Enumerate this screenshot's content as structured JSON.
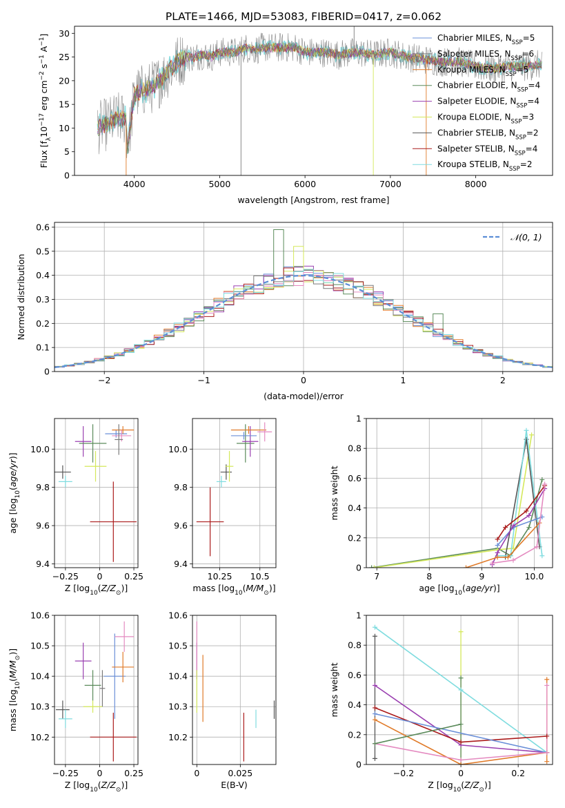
{
  "figure_title": "PLATE=1466, MJD=53083, FIBERID=0417, z=0.062",
  "colors": {
    "cMILES": "#6a8fd8",
    "sMILES": "#7a7a7a",
    "kMILES": "#e07a28",
    "cELODIE": "#5a8a5a",
    "sELODIE": "#9a3fb0",
    "kELODIE": "#d4e85a",
    "cSTELIB": "#555555",
    "sSTELIB": "#aa1a1a",
    "kSTELIB": "#7fdcdf",
    "pink": "#e48ac0",
    "norm": "#5b8dd6"
  },
  "spectrum_legend": [
    {
      "pre": "Chabrier MILES, N",
      "n": "5",
      "color": "#6a8fd8"
    },
    {
      "pre": "Salpeter MILES, N",
      "n": "6",
      "color": "#7a7a7a"
    },
    {
      "pre": "Kroupa MILES, N",
      "n": "5",
      "color": "#e07a28"
    },
    {
      "pre": "Chabrier ELODIE, N",
      "n": "4",
      "color": "#5a8a5a"
    },
    {
      "pre": "Salpeter ELODIE, N",
      "n": "4",
      "color": "#9a3fb0"
    },
    {
      "pre": "Kroupa ELODIE, N",
      "n": "3",
      "color": "#d4e85a"
    },
    {
      "pre": "Chabrier STELIB, N",
      "n": "2",
      "color": "#555555"
    },
    {
      "pre": "Salpeter STELIB, N",
      "n": "4",
      "color": "#aa1a1a"
    },
    {
      "pre": "Kroupa STELIB, N",
      "n": "2",
      "color": "#7fdcdf"
    }
  ],
  "legend_sub": "SSP",
  "chart_data": [
    {
      "id": "spectrum",
      "type": "line",
      "xlabel": "wavelength [Angstrom, rest frame]",
      "ylabel": "Flux [f_λ10^-17 erg cm^-2 s^-1 A^-1]",
      "xlim": [
        3300,
        8900
      ],
      "ylim": [
        0,
        31.5
      ],
      "xticks": [
        4000,
        5000,
        6000,
        7000,
        8000
      ],
      "yticks": [
        0,
        5,
        10,
        15,
        20,
        25,
        30
      ],
      "continuum": [
        [
          3570,
          10
        ],
        [
          3700,
          11
        ],
        [
          3800,
          12
        ],
        [
          3900,
          12
        ],
        [
          3920,
          6
        ],
        [
          3960,
          11
        ],
        [
          4000,
          17
        ],
        [
          4100,
          18
        ],
        [
          4200,
          18.5
        ],
        [
          4300,
          20
        ],
        [
          4400,
          22
        ],
        [
          4500,
          24
        ],
        [
          4600,
          25
        ],
        [
          4700,
          25
        ],
        [
          4800,
          25.5
        ],
        [
          4900,
          25
        ],
        [
          5000,
          26
        ],
        [
          5100,
          26
        ],
        [
          5200,
          26
        ],
        [
          5300,
          27
        ],
        [
          5400,
          26.5
        ],
        [
          5500,
          27
        ],
        [
          5600,
          27
        ],
        [
          5700,
          27
        ],
        [
          5800,
          27
        ],
        [
          5900,
          27
        ],
        [
          6000,
          26
        ],
        [
          6200,
          26
        ],
        [
          6400,
          25.5
        ],
        [
          6600,
          26
        ],
        [
          6800,
          25.5
        ],
        [
          7000,
          26
        ],
        [
          7200,
          25
        ],
        [
          7400,
          24.5
        ],
        [
          7600,
          24
        ],
        [
          7800,
          24
        ],
        [
          8000,
          23
        ],
        [
          8200,
          22.5
        ],
        [
          8400,
          23
        ],
        [
          8600,
          23
        ],
        [
          8780,
          23.5
        ]
      ],
      "spikes": [
        {
          "x": 3905,
          "y": 0
        },
        {
          "x": 5250,
          "y": 0
        },
        {
          "x": 6575,
          "y": 31.5
        },
        {
          "x": 6800,
          "y": 0
        },
        {
          "x": 7420,
          "y": 0
        }
      ]
    },
    {
      "id": "residuals",
      "type": "histogram",
      "xlabel": "(data-model)/error",
      "ylabel": "Normed distribution",
      "xlim": [
        -2.5,
        2.5
      ],
      "ylim": [
        0,
        0.62
      ],
      "xticks": [
        -2,
        -1,
        0,
        1,
        2
      ],
      "yticks": [
        0.0,
        0.1,
        0.2,
        0.3,
        0.4,
        0.5,
        0.6
      ],
      "bin_width": 0.1,
      "peak_highlights": [
        {
          "x": -0.2,
          "y": 0.59
        },
        {
          "x": -0.05,
          "y": 0.52
        },
        {
          "x": 1.35,
          "y": 0.24
        }
      ],
      "legend": "𝒩(0, 1)"
    },
    {
      "id": "z_age",
      "type": "errorbar",
      "xlabel": "Z [log10(Z/Z⊙)]",
      "ylabel": "age  [log10(age/yr)]",
      "xlim": [
        -0.33,
        0.28
      ],
      "ylim": [
        9.38,
        10.16
      ],
      "xticks": [
        -0.25,
        0.0,
        0.25
      ],
      "yticks": [
        9.4,
        9.6,
        9.8,
        10.0
      ],
      "points": [
        {
          "x": -0.27,
          "y": 9.88,
          "ex": 0.06,
          "ey": 0.035,
          "color": "#555555"
        },
        {
          "x": -0.25,
          "y": 9.83,
          "ex": 0.05,
          "ey": 0.03,
          "color": "#7fdcdf"
        },
        {
          "x": -0.12,
          "y": 10.04,
          "ex": 0.06,
          "ey": 0.08,
          "color": "#9a3fb0"
        },
        {
          "x": -0.05,
          "y": 10.03,
          "ex": 0.1,
          "ey": 0.1,
          "color": "#5a8a5a"
        },
        {
          "x": -0.03,
          "y": 9.91,
          "ex": 0.08,
          "ey": 0.08,
          "color": "#d4e85a"
        },
        {
          "x": 0.1,
          "y": 9.62,
          "ex": 0.17,
          "ey": 0.21,
          "color": "#aa1a1a"
        },
        {
          "x": 0.12,
          "y": 10.08,
          "ex": 0.08,
          "ey": 0.02,
          "color": "#6a8fd8"
        },
        {
          "x": 0.17,
          "y": 10.1,
          "ex": 0.08,
          "ey": 0.02,
          "color": "#e07a28"
        },
        {
          "x": 0.16,
          "y": 10.07,
          "ex": 0.07,
          "ey": 0.03,
          "color": "#e48ac0"
        },
        {
          "x": 0.14,
          "y": 10.05,
          "ex": 0.03,
          "ey": 0.08,
          "color": "#7a7a7a"
        }
      ]
    },
    {
      "id": "mass_age",
      "type": "errorbar",
      "xlabel": "mass [log10(M/M⊙)]",
      "ylabel": "",
      "xlim": [
        10.08,
        10.6
      ],
      "ylim": [
        9.38,
        10.16
      ],
      "xticks": [
        10.25,
        10.5
      ],
      "yticks": [
        9.4,
        9.6,
        9.8,
        10.0
      ],
      "points": [
        {
          "x": 10.19,
          "y": 9.62,
          "ex": 0.085,
          "ey": 0.18,
          "color": "#aa1a1a"
        },
        {
          "x": 10.26,
          "y": 9.83,
          "ex": 0.03,
          "ey": 0.03,
          "color": "#7fdcdf"
        },
        {
          "x": 10.29,
          "y": 9.88,
          "ex": 0.035,
          "ey": 0.04,
          "color": "#555555"
        },
        {
          "x": 10.31,
          "y": 9.91,
          "ex": 0.025,
          "ey": 0.08,
          "color": "#d4e85a"
        },
        {
          "x": 10.41,
          "y": 10.03,
          "ex": 0.055,
          "ey": 0.1,
          "color": "#5a8a5a"
        },
        {
          "x": 10.44,
          "y": 10.04,
          "ex": 0.05,
          "ey": 0.08,
          "color": "#9a3fb0"
        },
        {
          "x": 10.4,
          "y": 10.07,
          "ex": 0.08,
          "ey": 0.02,
          "color": "#6a8fd8"
        },
        {
          "x": 10.43,
          "y": 10.1,
          "ex": 0.11,
          "ey": 0.02,
          "color": "#e07a28"
        },
        {
          "x": 10.53,
          "y": 10.09,
          "ex": 0.045,
          "ey": 0.05,
          "color": "#e48ac0"
        }
      ]
    },
    {
      "id": "age_weight",
      "type": "line",
      "xlabel": "age  [log10(age/yr)]",
      "ylabel": "mass weight",
      "xlim": [
        6.8,
        10.35
      ],
      "ylim": [
        0,
        1.0
      ],
      "xticks": [
        7,
        8,
        9,
        10
      ],
      "yticks": [
        0.0,
        0.2,
        0.4,
        0.6,
        0.8,
        1.0
      ],
      "series": [
        {
          "color": "#5a8a5a",
          "points": [
            [
              6.9,
              0.0
            ],
            [
              9.3,
              0.13
            ],
            [
              9.55,
              0.08
            ],
            [
              9.9,
              0.27
            ],
            [
              10.15,
              0.59
            ]
          ]
        },
        {
          "color": "#d4e85a",
          "points": [
            [
              6.95,
              0.0
            ],
            [
              9.3,
              0.12
            ],
            [
              9.6,
              0.13
            ],
            [
              9.95,
              0.89
            ]
          ]
        },
        {
          "color": "#555555",
          "points": [
            [
              9.45,
              0.07
            ],
            [
              9.85,
              0.86
            ],
            [
              10.1,
              0.14
            ]
          ]
        },
        {
          "color": "#7fdcdf",
          "points": [
            [
              9.3,
              0.08
            ],
            [
              9.55,
              0.08
            ],
            [
              9.85,
              0.92
            ],
            [
              10.15,
              0.08
            ]
          ]
        },
        {
          "color": "#6a8fd8",
          "points": [
            [
              9.3,
              0.15
            ],
            [
              9.6,
              0.27
            ],
            [
              10.15,
              0.34
            ]
          ]
        },
        {
          "color": "#9a3fb0",
          "points": [
            [
              9.2,
              0.02
            ],
            [
              9.3,
              0.1
            ],
            [
              9.6,
              0.28
            ],
            [
              9.9,
              0.35
            ],
            [
              10.2,
              0.53
            ]
          ]
        },
        {
          "color": "#aa1a1a",
          "points": [
            [
              9.3,
              0.19
            ],
            [
              9.45,
              0.27
            ],
            [
              9.85,
              0.38
            ],
            [
              10.2,
              0.55
            ]
          ]
        },
        {
          "color": "#e07a28",
          "points": [
            [
              8.7,
              0.0
            ],
            [
              9.3,
              0.07
            ],
            [
              9.5,
              0.07
            ],
            [
              10.1,
              0.3
            ]
          ]
        },
        {
          "color": "#e48ac0",
          "points": [
            [
              9.2,
              0.03
            ],
            [
              9.6,
              0.05
            ],
            [
              10.05,
              0.14
            ],
            [
              10.2,
              0.56
            ]
          ]
        }
      ]
    },
    {
      "id": "z_mass",
      "type": "errorbar",
      "xlabel": "Z [log10(Z/Z⊙)]",
      "ylabel": "mass [log10(M/M⊙)]",
      "xlim": [
        -0.33,
        0.28
      ],
      "ylim": [
        10.11,
        10.6
      ],
      "xticks": [
        -0.25,
        0.0,
        0.25
      ],
      "yticks": [
        10.2,
        10.3,
        10.4,
        10.5,
        10.6
      ],
      "points": [
        {
          "x": -0.27,
          "y": 10.29,
          "ex": 0.05,
          "ey": 0.03,
          "color": "#555555"
        },
        {
          "x": -0.25,
          "y": 10.26,
          "ex": 0.05,
          "ey": 0.03,
          "color": "#7fdcdf"
        },
        {
          "x": -0.12,
          "y": 10.45,
          "ex": 0.06,
          "ey": 0.06,
          "color": "#9a3fb0"
        },
        {
          "x": -0.05,
          "y": 10.37,
          "ex": 0.06,
          "ey": 0.05,
          "color": "#5a8a5a"
        },
        {
          "x": -0.05,
          "y": 10.3,
          "ex": 0.07,
          "ey": 0.02,
          "color": "#d4e85a"
        },
        {
          "x": 0.1,
          "y": 10.2,
          "ex": 0.17,
          "ey": 0.08,
          "color": "#aa1a1a"
        },
        {
          "x": 0.11,
          "y": 10.4,
          "ex": 0.08,
          "ey": 0.14,
          "color": "#6a8fd8"
        },
        {
          "x": 0.17,
          "y": 10.43,
          "ex": 0.08,
          "ey": 0.05,
          "color": "#e07a28"
        },
        {
          "x": 0.18,
          "y": 10.53,
          "ex": 0.07,
          "ey": 0.05,
          "color": "#e48ac0"
        },
        {
          "x": 0.02,
          "y": 10.36,
          "ex": 0.02,
          "ey": 0.06,
          "color": "#7a7a7a"
        }
      ]
    },
    {
      "id": "ebv_mass",
      "type": "errorbar",
      "xlabel": "E(B-V)",
      "ylabel": "",
      "xlim": [
        -0.0025,
        0.0455
      ],
      "ylim": [
        10.11,
        10.6
      ],
      "xticks": [
        0.0,
        0.025
      ],
      "yticks": [
        10.2,
        10.3,
        10.4,
        10.5,
        10.6
      ],
      "points": [
        {
          "x": 0.0,
          "y": 10.45,
          "ex": 0,
          "ey": 0.06,
          "color": "#9a3fb0"
        },
        {
          "x": 0.0,
          "y": 10.5,
          "ex": 0,
          "ey": 0.08,
          "color": "#e48ac0"
        },
        {
          "x": 0.0,
          "y": 10.35,
          "ex": 0,
          "ey": 0.07,
          "color": "#d4e85a"
        },
        {
          "x": 0.0035,
          "y": 10.36,
          "ex": 0,
          "ey": 0.11,
          "color": "#e07a28"
        },
        {
          "x": 0.027,
          "y": 10.2,
          "ex": 0,
          "ey": 0.08,
          "color": "#aa1a1a"
        },
        {
          "x": 0.034,
          "y": 10.26,
          "ex": 0,
          "ey": 0.03,
          "color": "#7fdcdf"
        },
        {
          "x": 0.0445,
          "y": 10.29,
          "ex": 0,
          "ey": 0.03,
          "color": "#555555"
        }
      ]
    },
    {
      "id": "z_weight",
      "type": "line",
      "xlabel": "Z [log10(Z/Z⊙)]",
      "ylabel": "mass weight",
      "xlim": [
        -0.33,
        0.32
      ],
      "ylim": [
        0,
        1.0
      ],
      "xticks": [
        -0.2,
        0.0,
        0.2
      ],
      "yticks": [
        0.0,
        0.2,
        0.4,
        0.6,
        0.8,
        1.0
      ],
      "series": [
        {
          "color": "#7fdcdf",
          "points": [
            [
              -0.3,
              0.92
            ],
            [
              0.0,
              0.5
            ],
            [
              0.3,
              0.08
            ]
          ]
        },
        {
          "color": "#9a3fb0",
          "points": [
            [
              -0.3,
              0.53
            ],
            [
              0.0,
              0.13
            ],
            [
              0.3,
              0.08
            ]
          ]
        },
        {
          "color": "#aa1a1a",
          "points": [
            [
              -0.3,
              0.38
            ],
            [
              0.0,
              0.15
            ],
            [
              0.3,
              0.19
            ]
          ]
        },
        {
          "color": "#6a8fd8",
          "points": [
            [
              -0.3,
              0.34
            ],
            [
              0.3,
              0.08
            ]
          ]
        },
        {
          "color": "#e07a28",
          "points": [
            [
              -0.3,
              0.3
            ],
            [
              0.0,
              0.0
            ],
            [
              0.3,
              0.08
            ]
          ]
        },
        {
          "color": "#e48ac0",
          "points": [
            [
              -0.3,
              0.14
            ],
            [
              0.0,
              0.03
            ],
            [
              0.3,
              0.08
            ]
          ]
        },
        {
          "color": "#5a8a5a",
          "points": [
            [
              -0.3,
              0.14
            ],
            [
              0.0,
              0.27
            ]
          ]
        }
      ],
      "verticals": [
        {
          "x": -0.3,
          "y0": 0.04,
          "y1": 0.86,
          "color": "#555555"
        },
        {
          "x": 0.0,
          "y0": 0.0,
          "y1": 0.89,
          "color": "#d4e85a"
        },
        {
          "x": 0.0,
          "y0": 0.0,
          "y1": 0.58,
          "color": "#5a8a5a"
        },
        {
          "x": 0.3,
          "y0": 0.02,
          "y1": 0.57,
          "color": "#e07a28"
        },
        {
          "x": 0.3,
          "y0": 0.08,
          "y1": 0.53,
          "color": "#e48ac0"
        }
      ]
    }
  ]
}
